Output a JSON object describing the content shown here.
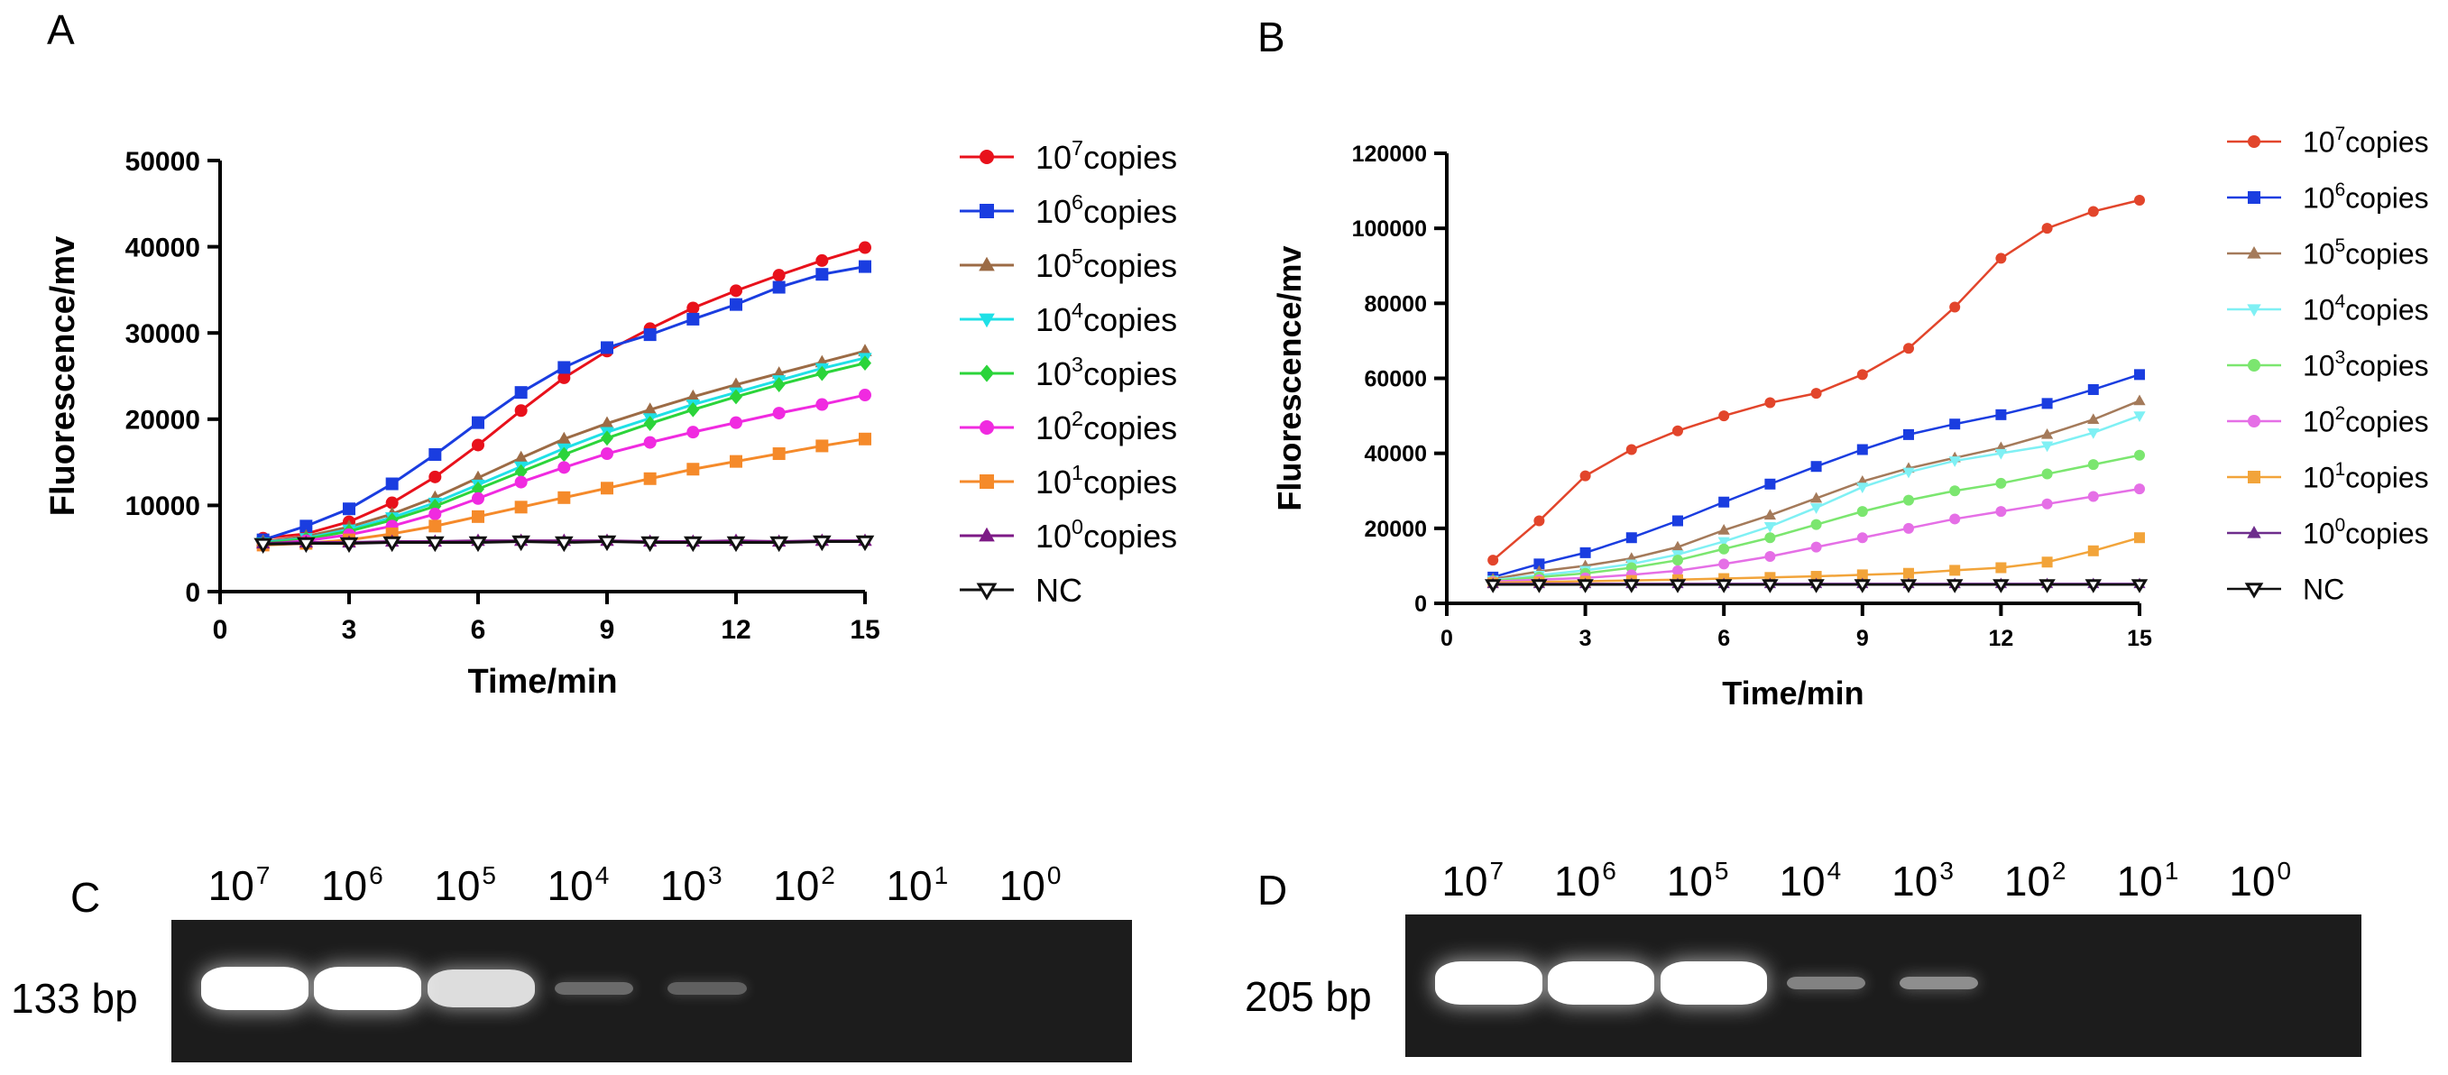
{
  "panels": {
    "a": {
      "letter": "A"
    },
    "b": {
      "letter": "B"
    },
    "c": {
      "letter": "C",
      "bp_label": "133 bp"
    },
    "d": {
      "letter": "D",
      "bp_label": "205 bp"
    }
  },
  "chart_data": [
    {
      "id": "A",
      "type": "line",
      "xlabel": "Time/min",
      "ylabel": "Fluorescence/mv",
      "xlim": [
        0,
        15
      ],
      "ylim": [
        0,
        50000
      ],
      "xticks": [
        0,
        3,
        6,
        9,
        12,
        15
      ],
      "yticks": [
        0,
        10000,
        20000,
        30000,
        40000,
        50000
      ],
      "x": [
        1,
        2,
        3,
        4,
        5,
        6,
        7,
        8,
        9,
        10,
        11,
        12,
        13,
        14,
        15
      ],
      "series": [
        {
          "name": "10",
          "exp": "7",
          "suffix": "copies",
          "color": "#e8111b",
          "marker": "circle",
          "values": [
            6200,
            6700,
            8100,
            10300,
            13300,
            17000,
            21000,
            24800,
            27900,
            30500,
            32900,
            34900,
            36700,
            38400,
            39900
          ]
        },
        {
          "name": "10",
          "exp": "6",
          "suffix": "copies",
          "color": "#1a3de0",
          "marker": "square",
          "values": [
            6000,
            7600,
            9600,
            12500,
            15900,
            19600,
            23100,
            26000,
            28300,
            29800,
            31600,
            33300,
            35300,
            36800,
            37700
          ]
        },
        {
          "name": "10",
          "exp": "5",
          "suffix": "copies",
          "color": "#9c6b45",
          "marker": "triangle-up",
          "values": [
            5800,
            6400,
            7500,
            9000,
            10900,
            13200,
            15500,
            17700,
            19500,
            21100,
            22600,
            24000,
            25300,
            26600,
            27900
          ]
        },
        {
          "name": "10",
          "exp": "4",
          "suffix": "copies",
          "color": "#1fe0e6",
          "marker": "triangle-down",
          "values": [
            5700,
            6200,
            7200,
            8600,
            10300,
            12400,
            14500,
            16600,
            18500,
            20100,
            21700,
            23100,
            24500,
            25900,
            27100
          ]
        },
        {
          "name": "10",
          "exp": "3",
          "suffix": "copies",
          "color": "#2bd43a",
          "marker": "diamond",
          "values": [
            5600,
            6100,
            7000,
            8300,
            9900,
            11900,
            13900,
            15900,
            17800,
            19500,
            21100,
            22600,
            24000,
            25300,
            26500
          ]
        },
        {
          "name": "10",
          "exp": "2",
          "suffix": "copies",
          "color": "#f02ae0",
          "marker": "circle",
          "values": [
            5500,
            5900,
            6600,
            7600,
            9000,
            10800,
            12700,
            14400,
            16000,
            17300,
            18500,
            19600,
            20700,
            21700,
            22800
          ]
        },
        {
          "name": "10",
          "exp": "1",
          "suffix": "copies",
          "color": "#f58a2a",
          "marker": "square",
          "values": [
            5400,
            5600,
            6000,
            6700,
            7600,
            8700,
            9800,
            10900,
            12000,
            13100,
            14200,
            15100,
            16000,
            16900,
            17700
          ]
        },
        {
          "name": "10",
          "exp": "0",
          "suffix": "copies",
          "color": "#7d1a86",
          "marker": "triangle-up",
          "values": [
            5600,
            5700,
            5700,
            5800,
            5800,
            5900,
            5900,
            5900,
            5900,
            5800,
            5800,
            5900,
            5800,
            5900,
            5900
          ]
        },
        {
          "name": "NC",
          "exp": "",
          "suffix": "",
          "color": "#111111",
          "marker": "triangle-down-open",
          "values": [
            5500,
            5600,
            5600,
            5700,
            5700,
            5700,
            5800,
            5700,
            5800,
            5700,
            5700,
            5700,
            5700,
            5800,
            5800
          ]
        }
      ]
    },
    {
      "id": "B",
      "type": "line",
      "xlabel": "Time/min",
      "ylabel": "Fluorescence/mv",
      "xlim": [
        0,
        15
      ],
      "ylim": [
        0,
        120000
      ],
      "xticks": [
        0,
        3,
        6,
        9,
        12,
        15
      ],
      "yticks": [
        0,
        20000,
        40000,
        60000,
        80000,
        100000,
        120000
      ],
      "x": [
        1,
        2,
        3,
        4,
        5,
        6,
        7,
        8,
        9,
        10,
        11,
        12,
        13,
        14,
        15
      ],
      "series": [
        {
          "name": "10",
          "exp": "7",
          "suffix": "copies",
          "color": "#e2452b",
          "marker": "circle",
          "values": [
            11500,
            22000,
            34000,
            41000,
            46000,
            50000,
            53500,
            56000,
            61000,
            68000,
            79000,
            92000,
            100000,
            104500,
            107500
          ]
        },
        {
          "name": "10",
          "exp": "6",
          "suffix": "copies",
          "color": "#1a3de0",
          "marker": "square",
          "values": [
            7000,
            10500,
            13500,
            17500,
            22000,
            27000,
            31800,
            36500,
            41000,
            45000,
            47800,
            50300,
            53300,
            57000,
            61000
          ]
        },
        {
          "name": "10",
          "exp": "5",
          "suffix": "copies",
          "color": "#a47a5a",
          "marker": "triangle-up",
          "values": [
            6500,
            8500,
            10000,
            12000,
            15000,
            19500,
            23500,
            28000,
            32500,
            36000,
            38800,
            41500,
            45000,
            49000,
            54000
          ]
        },
        {
          "name": "10",
          "exp": "4",
          "suffix": "copies",
          "color": "#7ff0f4",
          "marker": "triangle-down",
          "values": [
            6200,
            7500,
            8800,
            10500,
            13000,
            16500,
            20500,
            25500,
            31000,
            35000,
            38000,
            40000,
            42000,
            45500,
            50000
          ]
        },
        {
          "name": "10",
          "exp": "3",
          "suffix": "copies",
          "color": "#7be66f",
          "marker": "circle",
          "values": [
            6000,
            7000,
            8000,
            9500,
            11500,
            14500,
            17500,
            21000,
            24500,
            27500,
            30000,
            32000,
            34500,
            37000,
            39500
          ]
        },
        {
          "name": "10",
          "exp": "2",
          "suffix": "copies",
          "color": "#e56fe6",
          "marker": "circle",
          "values": [
            5800,
            6300,
            6800,
            7600,
            8700,
            10500,
            12500,
            15000,
            17500,
            20000,
            22500,
            24500,
            26500,
            28500,
            30500
          ]
        },
        {
          "name": "10",
          "exp": "1",
          "suffix": "copies",
          "color": "#f2a43a",
          "marker": "square",
          "values": [
            5500,
            5700,
            5900,
            6100,
            6300,
            6600,
            6900,
            7200,
            7600,
            8000,
            8800,
            9500,
            11000,
            14000,
            17500
          ]
        },
        {
          "name": "10",
          "exp": "0",
          "suffix": "copies",
          "color": "#6d2d8c",
          "marker": "triangle-up",
          "values": [
            5200,
            5200,
            5200,
            5200,
            5200,
            5200,
            5200,
            5200,
            5200,
            5200,
            5200,
            5200,
            5200,
            5200,
            5200
          ]
        },
        {
          "name": "NC",
          "exp": "",
          "suffix": "",
          "color": "#111111",
          "marker": "triangle-down-open",
          "values": [
            5000,
            5000,
            5000,
            5000,
            5000,
            5000,
            5000,
            5000,
            5000,
            5000,
            5000,
            5000,
            5000,
            5000,
            5000
          ]
        }
      ]
    }
  ],
  "gels": {
    "c": {
      "lanes": [
        {
          "base": "10",
          "exp": "7",
          "intensity": 1.0
        },
        {
          "base": "10",
          "exp": "6",
          "intensity": 1.0
        },
        {
          "base": "10",
          "exp": "5",
          "intensity": 0.85
        },
        {
          "base": "10",
          "exp": "4",
          "intensity": 0.35
        },
        {
          "base": "10",
          "exp": "3",
          "intensity": 0.3
        },
        {
          "base": "10",
          "exp": "2",
          "intensity": 0
        },
        {
          "base": "10",
          "exp": "1",
          "intensity": 0
        },
        {
          "base": "10",
          "exp": "0",
          "intensity": 0
        }
      ]
    },
    "d": {
      "lanes": [
        {
          "base": "10",
          "exp": "7",
          "intensity": 1.0
        },
        {
          "base": "10",
          "exp": "6",
          "intensity": 1.0
        },
        {
          "base": "10",
          "exp": "5",
          "intensity": 1.0
        },
        {
          "base": "10",
          "exp": "4",
          "intensity": 0.45
        },
        {
          "base": "10",
          "exp": "3",
          "intensity": 0.5
        },
        {
          "base": "10",
          "exp": "2",
          "intensity": 0
        },
        {
          "base": "10",
          "exp": "1",
          "intensity": 0
        },
        {
          "base": "10",
          "exp": "0",
          "intensity": 0
        }
      ]
    }
  }
}
